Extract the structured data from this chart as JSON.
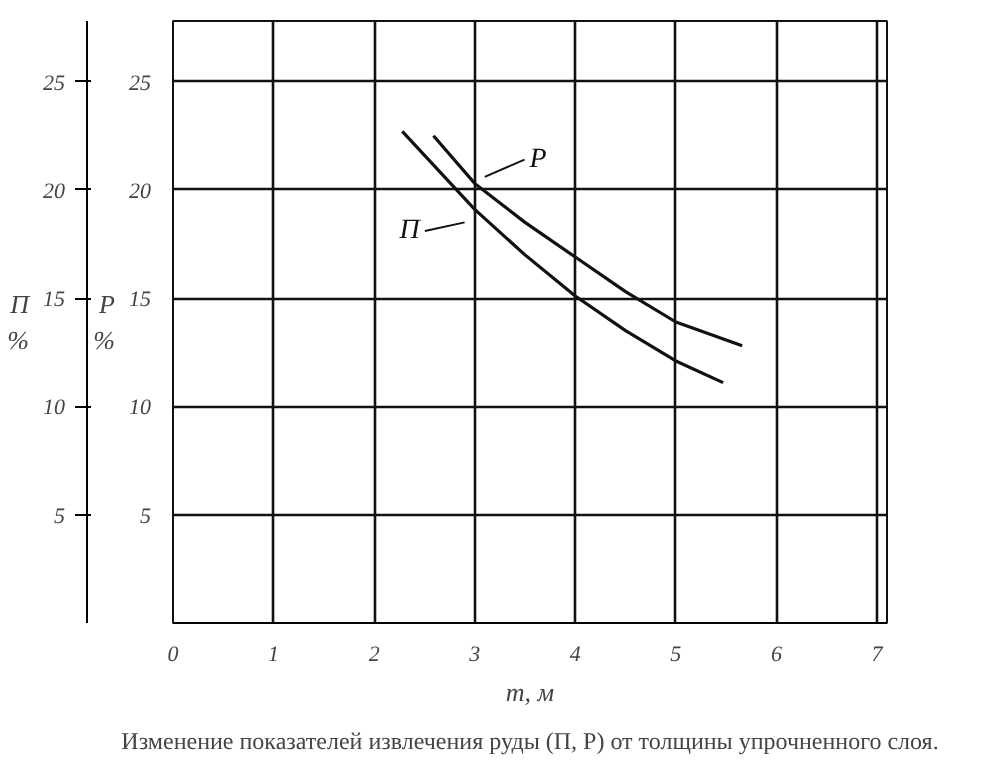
{
  "chart_data": {
    "type": "line",
    "xlabel": "m, м",
    "ylabel": "П\n%",
    "y2label": "Р\n%",
    "annotations": [
      "Изменение показателей извлечения руды (П, Р) от толщины упрочненного слоя."
    ],
    "series": [
      {
        "name": "Р",
        "color": "#111111",
        "axis": "y2",
        "x": [
          2.59,
          3.0,
          3.5,
          4.0,
          4.5,
          5.0,
          5.66
        ],
        "values": [
          22.5,
          20.3,
          18.5,
          16.9,
          15.3,
          13.9,
          12.8
        ]
      },
      {
        "name": "П",
        "color": "#111111",
        "axis": "y",
        "x": [
          2.28,
          3.0,
          3.5,
          4.0,
          4.5,
          5.0,
          5.47
        ],
        "values": [
          22.7,
          19.1,
          17.0,
          15.1,
          13.5,
          12.1,
          11.1
        ]
      }
    ],
    "xlim": [
      0,
      7.1
    ],
    "xticks": [
      0,
      1,
      2,
      3,
      4,
      5,
      6,
      7
    ],
    "ylim": [
      0,
      27.8
    ],
    "yticks": [
      5,
      10,
      15,
      20,
      25
    ],
    "y2lim": [
      0,
      27.8
    ],
    "y2ticks": [
      5,
      10,
      15,
      20,
      25
    ],
    "grid": true,
    "marker": "none",
    "line_style": "solid"
  }
}
